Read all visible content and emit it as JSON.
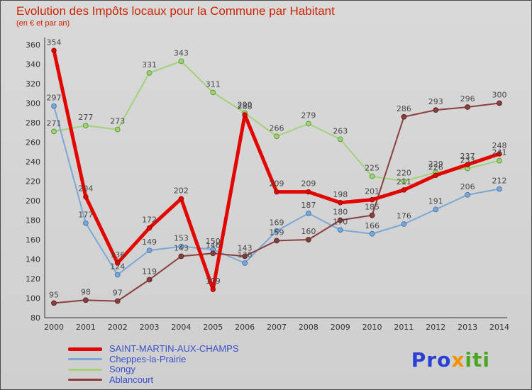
{
  "title": "Evolution des Impôts locaux pour la Commune par Habitant",
  "subtitle": "(en € et par an)",
  "logo": {
    "parts": [
      {
        "text": "Pro",
        "color": "#2a3fd4"
      },
      {
        "text": "x",
        "color": "#f29100"
      },
      {
        "text": "iti",
        "color": "#4aa520"
      }
    ]
  },
  "chart_data": {
    "type": "line",
    "title": "Evolution des Impôts locaux pour la Commune par Habitant",
    "subtitle": "(en € et par an)",
    "x": [
      2000,
      2001,
      2002,
      2003,
      2004,
      2005,
      2006,
      2007,
      2008,
      2009,
      2010,
      2011,
      2012,
      2013,
      2014
    ],
    "ylim": [
      80,
      360
    ],
    "yticks": [
      80,
      100,
      120,
      140,
      160,
      180,
      200,
      220,
      240,
      260,
      280,
      300,
      320,
      340,
      360
    ],
    "grid": false,
    "legend_position": "bottom-left",
    "series": [
      {
        "name": "SAINT-MARTIN-AUX-CHAMPS",
        "color": "#e10600",
        "marker_outline": "#a30000",
        "stroke_width": 5,
        "values": [
          354,
          204,
          136,
          172,
          202,
          109,
          288,
          209,
          209,
          198,
          201,
          211,
          226,
          237,
          248
        ]
      },
      {
        "name": "Cheppes-la-Prairie",
        "color": "#7ba7d7",
        "marker_outline": "#4a7ab0",
        "stroke_width": 2,
        "values": [
          297,
          177,
          124,
          149,
          153,
          150,
          136,
          169,
          187,
          170,
          166,
          176,
          191,
          206,
          212
        ]
      },
      {
        "name": "Songy",
        "color": "#a2d278",
        "marker_outline": "#5f9c3a",
        "stroke_width": 2,
        "values": [
          271,
          277,
          273,
          331,
          343,
          311,
          290,
          266,
          279,
          263,
          225,
          220,
          229,
          233,
          241
        ]
      },
      {
        "name": "Ablancourt",
        "color": "#8b3e3e",
        "marker_outline": "#5e2727",
        "stroke_width": 2,
        "values": [
          95,
          98,
          97,
          119,
          143,
          146,
          143,
          159,
          160,
          180,
          185,
          286,
          293,
          296,
          300
        ]
      }
    ]
  }
}
